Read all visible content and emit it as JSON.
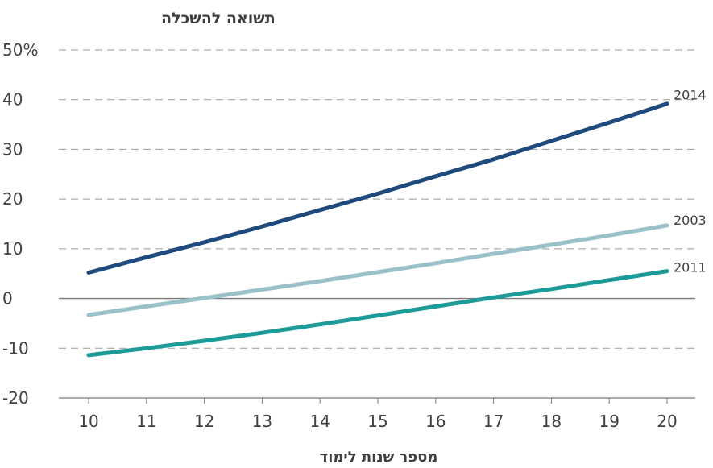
{
  "chart_data": {
    "type": "line",
    "ylabel": "תשואה להשכלה",
    "xlabel": "מספר שנות לימוד",
    "ytick_labels": [
      "50%",
      "40",
      "30",
      "20",
      "10",
      "0",
      "-10",
      "-20"
    ],
    "ylim": [
      -20,
      50
    ],
    "xlim": [
      10,
      20
    ],
    "x": [
      10,
      11,
      12,
      13,
      14,
      15,
      16,
      17,
      18,
      19,
      20
    ],
    "grid": "dashed horizontal",
    "series": [
      {
        "name": "2014",
        "color": "#1f4a7e",
        "values": [
          5.2,
          8.3,
          11.3,
          14.5,
          17.8,
          21.1,
          24.6,
          28.0,
          31.7,
          35.4,
          39.2
        ]
      },
      {
        "name": "2003",
        "color": "#9ac1c9",
        "values": [
          -3.3,
          -1.6,
          0.1,
          1.8,
          3.5,
          5.3,
          7.1,
          9.0,
          10.8,
          12.7,
          14.7
        ]
      },
      {
        "name": "2011",
        "color": "#1d9b98",
        "values": [
          -11.4,
          -10.0,
          -8.5,
          -6.9,
          -5.2,
          -3.4,
          -1.6,
          0.2,
          1.9,
          3.7,
          5.5
        ]
      }
    ]
  }
}
